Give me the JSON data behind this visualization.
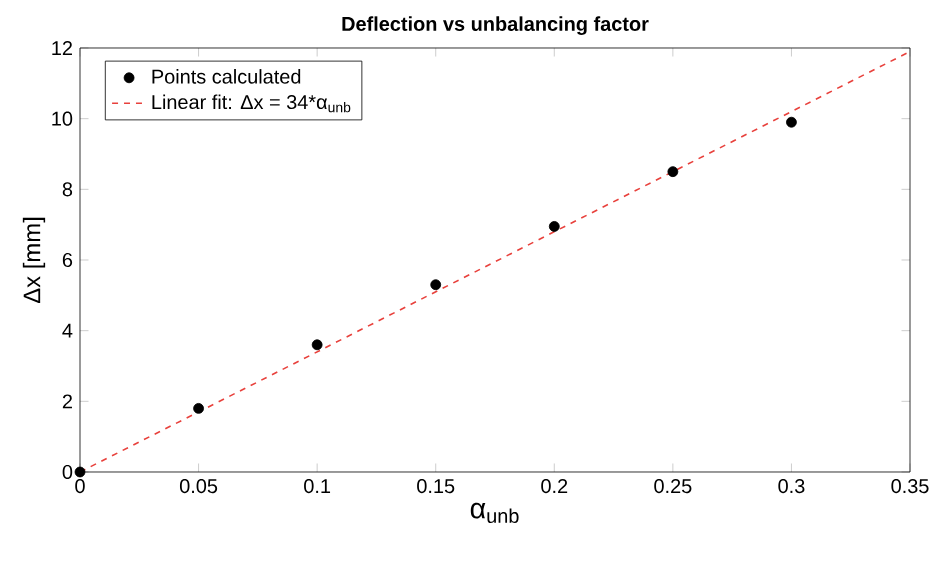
{
  "chart_data": {
    "type": "scatter",
    "title": "Deflection vs unbalancing factor",
    "xlabel": "α$_{unb}$",
    "ylabel": "Δx [mm]",
    "xlim": [
      0,
      0.35
    ],
    "xticks": [
      0,
      0.05,
      0.1,
      0.15,
      0.2,
      0.25,
      0.3,
      0.35
    ],
    "ylim": [
      0,
      12
    ],
    "yticks": [
      0,
      2,
      4,
      6,
      8,
      10,
      12
    ],
    "grid": false,
    "legend": "top left",
    "series": [
      {
        "name": "Points calculated",
        "marker": "circle",
        "color": "#000000",
        "x": [
          0,
          0.05,
          0.1,
          0.15,
          0.2,
          0.25,
          0.3
        ],
        "values": [
          0,
          1.8,
          3.6,
          5.3,
          6.95,
          8.5,
          9.9
        ]
      },
      {
        "name": "Linear fit: Δx = 34*α$_{unb}$",
        "type": "line",
        "line_style": "dashed",
        "marker": "none",
        "color": "#e8413c",
        "x": [
          0,
          0.35
        ],
        "values": [
          0,
          11.9
        ]
      }
    ]
  }
}
